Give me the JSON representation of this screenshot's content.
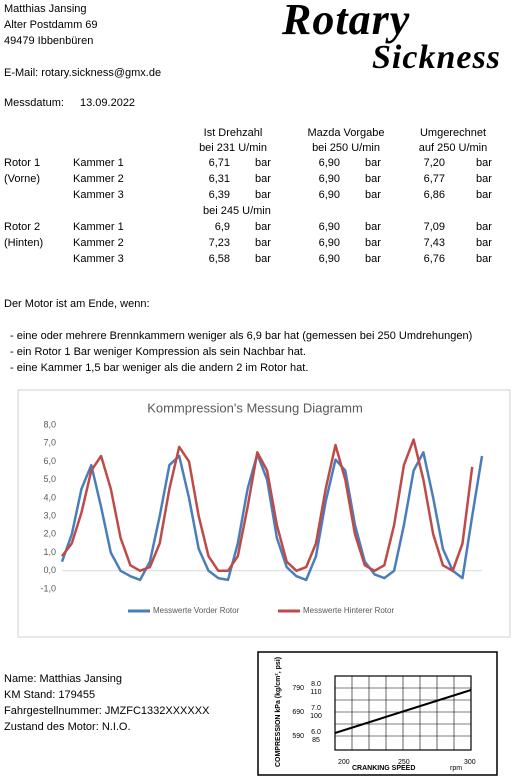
{
  "sender": {
    "name": "Matthias Jansing",
    "street": "Alter Postdamm 69",
    "city": "49479 Ibbenbüren",
    "email": "E-Mail: rotary.sickness@gmx.de"
  },
  "logo": {
    "top": "Rotary",
    "bottom": "Sickness"
  },
  "date": {
    "label": "Messdatum:",
    "value": "13.09.2022"
  },
  "table": {
    "columns": [
      "Ist Drehzahl",
      "Mazda Vorgabe",
      "Umgerechnet"
    ],
    "subcolumns": [
      "bei 231 U/min",
      "bei 250 U/min",
      "auf 250 U/min"
    ],
    "rotor2_note": "bei 245 U/min",
    "rotors": [
      {
        "name": "Rotor 1",
        "position": "(Vorne)",
        "rows": [
          {
            "chamber": "Kammer 1",
            "values": [
              "6,71",
              "6,90",
              "7,20"
            ],
            "units": [
              "bar",
              "bar",
              "bar"
            ]
          },
          {
            "chamber": "Kammer 2",
            "values": [
              "6,31",
              "6,90",
              "6,77"
            ],
            "units": [
              "bar",
              "bar",
              "bar"
            ]
          },
          {
            "chamber": "Kammer 3",
            "values": [
              "6,39",
              "6,90",
              "6,86"
            ],
            "units": [
              "bar",
              "bar",
              "bar"
            ]
          }
        ]
      },
      {
        "name": "Rotor 2",
        "position": "(Hinten)",
        "rows": [
          {
            "chamber": "Kammer 1",
            "values": [
              "6,9",
              "6,90",
              "7,09"
            ],
            "units": [
              "bar",
              "bar",
              "bar"
            ]
          },
          {
            "chamber": "Kammer 2",
            "values": [
              "7,23",
              "6,90",
              "7,43"
            ],
            "units": [
              "bar",
              "bar",
              "bar"
            ]
          },
          {
            "chamber": "Kammer 3",
            "values": [
              "6,58",
              "6,90",
              "6,76"
            ],
            "units": [
              "bar",
              "bar",
              "bar"
            ]
          }
        ]
      }
    ]
  },
  "rules": {
    "intro": "Der Motor ist am Ende, wenn:",
    "items": [
      "- eine oder mehrere Brennkammern weniger als 6,9 bar hat (gemessen bei 250 Umdrehungen)",
      "- ein Rotor 1 Bar weniger Kompression als sein Nachbar hat.",
      "- eine Kammer 1,5 bar weniger als die andern 2 im Rotor hat."
    ]
  },
  "chart": {
    "type": "line",
    "title": "Kommpression's Messung Diagramm",
    "ylim": [
      -1,
      8
    ],
    "yticks": [
      {
        "value": -1,
        "label": "-1,0"
      },
      {
        "value": 0,
        "label": "0,0"
      },
      {
        "value": 1,
        "label": "1,0"
      },
      {
        "value": 2,
        "label": "2,0"
      },
      {
        "value": 3,
        "label": "3,0"
      },
      {
        "value": 4,
        "label": "4,0"
      },
      {
        "value": 5,
        "label": "5,0"
      },
      {
        "value": 6,
        "label": "6,0"
      },
      {
        "value": 7,
        "label": "7,0"
      },
      {
        "value": 8,
        "label": "8,0"
      }
    ],
    "legend": "bottom",
    "series": [
      {
        "name": "Messwerte Vorder Rotor",
        "color": "#4a7ebb",
        "values": [
          0.5,
          2.0,
          4.5,
          5.8,
          3.5,
          1.0,
          0.0,
          -0.3,
          -0.5,
          0.5,
          3.0,
          5.8,
          6.3,
          4.0,
          1.2,
          0.0,
          -0.4,
          -0.5,
          1.5,
          4.5,
          6.4,
          5.0,
          1.8,
          0.2,
          -0.3,
          -0.5,
          0.8,
          3.8,
          6.1,
          5.5,
          2.5,
          0.5,
          -0.2,
          -0.4,
          0.0,
          2.5,
          5.5,
          6.5,
          4.0,
          1.2,
          0.0,
          -0.4,
          3.0,
          6.3
        ]
      },
      {
        "name": "Messwerte Hinterer Rotor",
        "color": "#be4b48",
        "values": [
          0.8,
          1.5,
          3.2,
          5.5,
          6.3,
          4.5,
          1.8,
          0.3,
          0.0,
          0.2,
          1.5,
          4.5,
          6.8,
          6.0,
          3.0,
          0.8,
          0.0,
          0.0,
          0.8,
          3.5,
          6.5,
          5.5,
          2.5,
          0.5,
          0.0,
          0.2,
          1.5,
          4.5,
          6.9,
          5.0,
          2.0,
          0.3,
          0.0,
          0.3,
          2.5,
          5.8,
          7.2,
          5.0,
          2.0,
          0.3,
          0.0,
          1.5,
          5.7,
          null
        ]
      }
    ]
  },
  "footer": [
    "Name: Matthias Jansing",
    "KM Stand: 179455",
    "Fahrgestellnummer: JMZFC1332XXXXXX",
    "Zustand des Motor:  N.I.O."
  ],
  "gauge": {
    "y_title": "COMPRESSION kPa (kg/cm², psi)",
    "y_labels": [
      [
        "790",
        "8.0",
        "110"
      ],
      [
        "690",
        "7.0",
        "100"
      ],
      [
        "590",
        "6.0",
        "85"
      ]
    ],
    "x_labels": [
      "200",
      "250",
      "300"
    ],
    "x_title": "CRANKING SPEED",
    "x_unit": "rpm"
  }
}
